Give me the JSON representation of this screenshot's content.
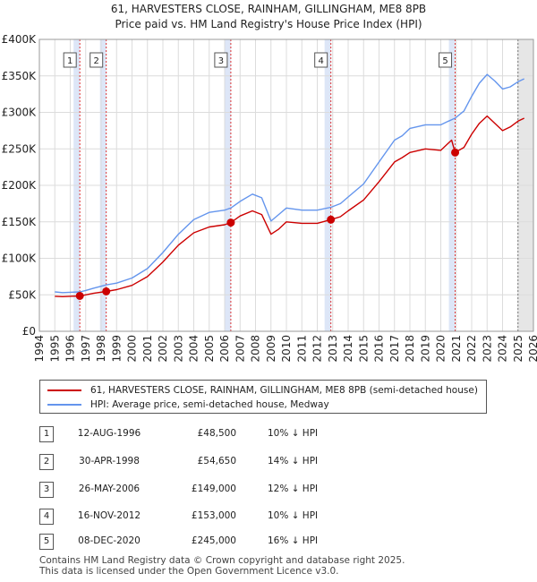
{
  "chart_data": {
    "type": "line",
    "title": "61, HARVESTERS CLOSE, RAINHAM, GILLINGHAM, ME8 8PB",
    "subtitle": "Price paid vs. HM Land Registry's House Price Index (HPI)",
    "xlabel": "",
    "ylabel": "",
    "xlim": [
      1994,
      2026
    ],
    "ylim": [
      0,
      400000
    ],
    "x_ticks": [
      1994,
      1995,
      1996,
      1997,
      1998,
      1999,
      2000,
      2001,
      2002,
      2003,
      2004,
      2005,
      2006,
      2007,
      2008,
      2009,
      2010,
      2011,
      2012,
      2013,
      2014,
      2015,
      2016,
      2017,
      2018,
      2019,
      2020,
      2021,
      2022,
      2023,
      2024,
      2025,
      2026
    ],
    "y_ticks": [
      {
        "value": 0,
        "label": "£0"
      },
      {
        "value": 50000,
        "label": "£50K"
      },
      {
        "value": 100000,
        "label": "£100K"
      },
      {
        "value": 150000,
        "label": "£150K"
      },
      {
        "value": 200000,
        "label": "£200K"
      },
      {
        "value": 250000,
        "label": "£250K"
      },
      {
        "value": 300000,
        "label": "£300K"
      },
      {
        "value": 350000,
        "label": "£350K"
      },
      {
        "value": 400000,
        "label": "£400K"
      }
    ],
    "series": [
      {
        "name": "61, HARVESTERS CLOSE, RAINHAM, GILLINGHAM, ME8 8PB (semi-detached house)",
        "color": "#cc0000",
        "points": [
          [
            1995.0,
            48000
          ],
          [
            1995.5,
            47500
          ],
          [
            1996.0,
            48000
          ],
          [
            1996.62,
            48500
          ],
          [
            1997.0,
            50000
          ],
          [
            1997.5,
            52000
          ],
          [
            1998.33,
            54650
          ],
          [
            1999.0,
            57000
          ],
          [
            2000.0,
            63000
          ],
          [
            2001.0,
            75000
          ],
          [
            2002.0,
            95000
          ],
          [
            2003.0,
            118000
          ],
          [
            2004.0,
            135000
          ],
          [
            2005.0,
            143000
          ],
          [
            2006.0,
            146000
          ],
          [
            2006.4,
            149000
          ],
          [
            2007.0,
            158000
          ],
          [
            2007.8,
            165000
          ],
          [
            2008.4,
            160000
          ],
          [
            2009.0,
            133000
          ],
          [
            2009.5,
            140000
          ],
          [
            2010.0,
            150000
          ],
          [
            2011.0,
            148000
          ],
          [
            2012.0,
            148000
          ],
          [
            2012.88,
            153000
          ],
          [
            2013.5,
            157000
          ],
          [
            2014.0,
            165000
          ],
          [
            2015.0,
            180000
          ],
          [
            2016.0,
            205000
          ],
          [
            2017.0,
            232000
          ],
          [
            2017.5,
            238000
          ],
          [
            2018.0,
            245000
          ],
          [
            2019.0,
            250000
          ],
          [
            2020.0,
            248000
          ],
          [
            2020.5,
            258000
          ],
          [
            2020.7,
            262000
          ],
          [
            2020.93,
            245000
          ],
          [
            2021.5,
            252000
          ],
          [
            2022.0,
            270000
          ],
          [
            2022.5,
            285000
          ],
          [
            2023.0,
            295000
          ],
          [
            2023.5,
            285000
          ],
          [
            2024.0,
            275000
          ],
          [
            2024.5,
            280000
          ],
          [
            2025.0,
            288000
          ],
          [
            2025.4,
            292000
          ]
        ]
      },
      {
        "name": "HPI: Average price, semi-detached house, Medway",
        "color": "#6495ed",
        "points": [
          [
            1995.0,
            54000
          ],
          [
            1995.5,
            53000
          ],
          [
            1996.0,
            53500
          ],
          [
            1996.62,
            54000
          ],
          [
            1997.0,
            56000
          ],
          [
            1997.5,
            59000
          ],
          [
            1998.33,
            63500
          ],
          [
            1999.0,
            66000
          ],
          [
            2000.0,
            73000
          ],
          [
            2001.0,
            86000
          ],
          [
            2002.0,
            108000
          ],
          [
            2003.0,
            133000
          ],
          [
            2004.0,
            153000
          ],
          [
            2005.0,
            163000
          ],
          [
            2006.0,
            166000
          ],
          [
            2006.4,
            169000
          ],
          [
            2007.0,
            178000
          ],
          [
            2007.8,
            188000
          ],
          [
            2008.4,
            183000
          ],
          [
            2009.0,
            151000
          ],
          [
            2009.5,
            160000
          ],
          [
            2010.0,
            169000
          ],
          [
            2011.0,
            166000
          ],
          [
            2012.0,
            166000
          ],
          [
            2012.88,
            170000
          ],
          [
            2013.5,
            175000
          ],
          [
            2014.0,
            184000
          ],
          [
            2015.0,
            202000
          ],
          [
            2016.0,
            232000
          ],
          [
            2017.0,
            262000
          ],
          [
            2017.5,
            268000
          ],
          [
            2018.0,
            278000
          ],
          [
            2019.0,
            283000
          ],
          [
            2020.0,
            283000
          ],
          [
            2020.5,
            288000
          ],
          [
            2020.93,
            292000
          ],
          [
            2021.5,
            302000
          ],
          [
            2022.0,
            322000
          ],
          [
            2022.5,
            340000
          ],
          [
            2023.0,
            352000
          ],
          [
            2023.5,
            343000
          ],
          [
            2024.0,
            332000
          ],
          [
            2024.5,
            335000
          ],
          [
            2025.0,
            342000
          ],
          [
            2025.4,
            346000
          ]
        ]
      }
    ],
    "sales": [
      {
        "num": "1",
        "x": 1996.62,
        "price": 48500
      },
      {
        "num": "2",
        "x": 1998.33,
        "price": 54650
      },
      {
        "num": "3",
        "x": 2006.4,
        "price": 149000
      },
      {
        "num": "4",
        "x": 2012.88,
        "price": 153000
      },
      {
        "num": "5",
        "x": 2020.93,
        "price": 245000
      }
    ],
    "projection_start": 2025.0,
    "legend": {
      "property_label": "61, HARVESTERS CLOSE, RAINHAM, GILLINGHAM, ME8 8PB (semi-detached house)",
      "hpi_label": "HPI: Average price, semi-detached house, Medway"
    }
  },
  "transactions": [
    {
      "num": "1",
      "date": "12-AUG-1996",
      "price": "£48,500",
      "hpi": "10% ↓ HPI"
    },
    {
      "num": "2",
      "date": "30-APR-1998",
      "price": "£54,650",
      "hpi": "14% ↓ HPI"
    },
    {
      "num": "3",
      "date": "26-MAY-2006",
      "price": "£149,000",
      "hpi": "12% ↓ HPI"
    },
    {
      "num": "4",
      "date": "16-NOV-2012",
      "price": "£153,000",
      "hpi": "10% ↓ HPI"
    },
    {
      "num": "5",
      "date": "08-DEC-2020",
      "price": "£245,000",
      "hpi": "16% ↓ HPI"
    }
  ],
  "footer": {
    "line1": "Contains HM Land Registry data © Crown copyright and database right 2025.",
    "line2": "This data is licensed under the Open Government Licence v3.0."
  },
  "colors": {
    "property": "#cc0000",
    "hpi": "#6495ed",
    "sale_band": "#dde6f7",
    "projection_band": "#e6e6e6",
    "grid": "#dcdcdc"
  }
}
